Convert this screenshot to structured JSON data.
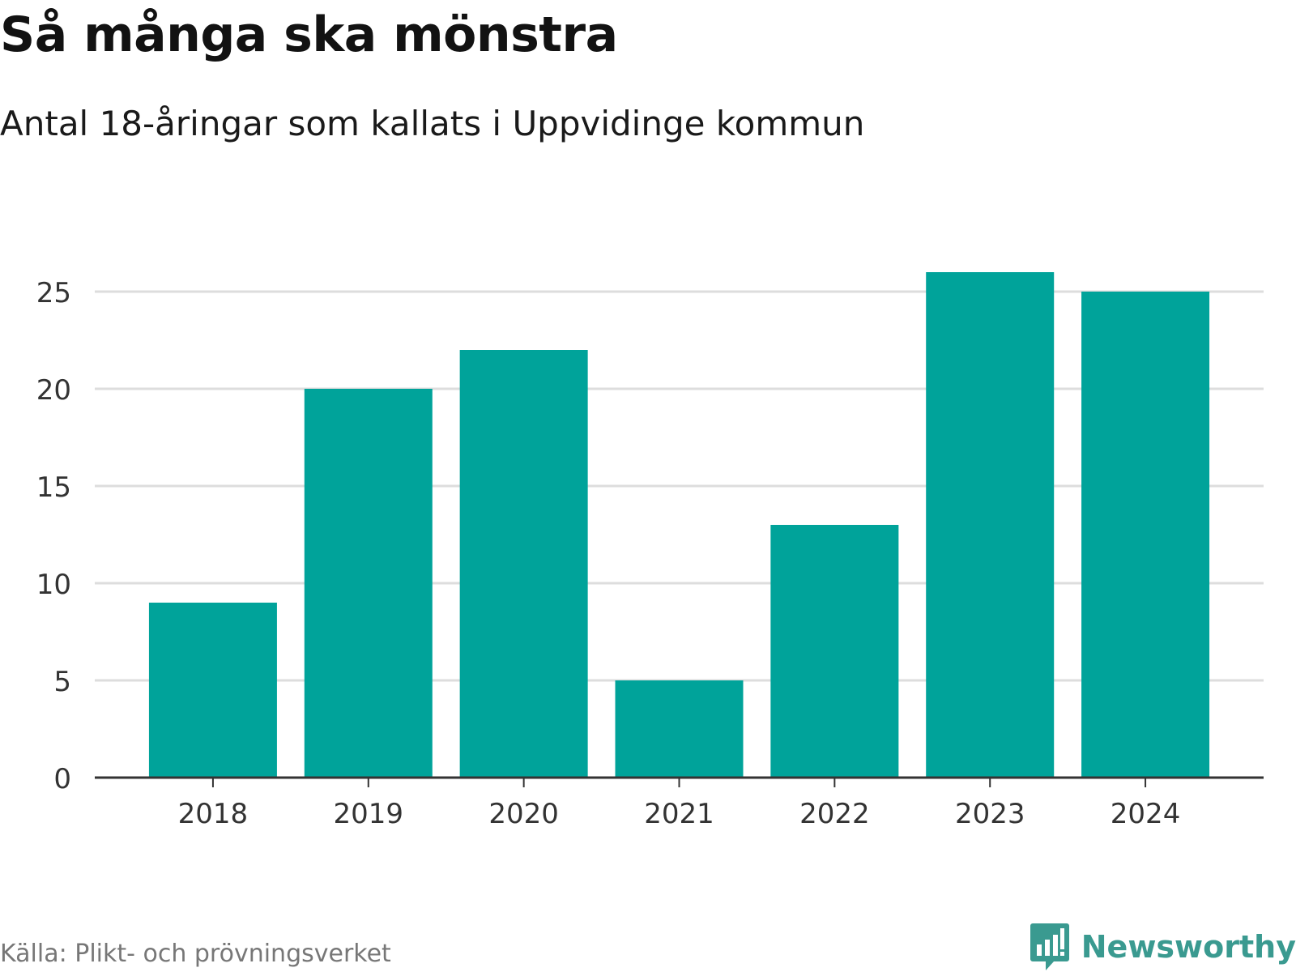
{
  "header": {
    "title": "Så många ska mönstra",
    "subtitle": "Antal 18-åringar som kallats i Uppvidinge kommun"
  },
  "footer": {
    "source": "Källa: Plikt- och prövningsverket",
    "brand": "Newsworthy",
    "brand_icon": "newsworthy-chart-icon"
  },
  "colors": {
    "bar": "#00a39a",
    "grid": "#dddddd",
    "axis": "#333333",
    "brand": "#3a9a90"
  },
  "chart_data": {
    "type": "bar",
    "title": "Så många ska mönstra",
    "subtitle": "Antal 18-åringar som kallats i Uppvidinge kommun",
    "categories": [
      "2018",
      "2019",
      "2020",
      "2021",
      "2022",
      "2023",
      "2024"
    ],
    "values": [
      9,
      20,
      22,
      5,
      13,
      26,
      25
    ],
    "xlabel": "",
    "ylabel": "",
    "ylim": [
      0,
      26
    ],
    "yticks": [
      0,
      5,
      10,
      15,
      20,
      25
    ],
    "grid": true,
    "legend": "none"
  }
}
